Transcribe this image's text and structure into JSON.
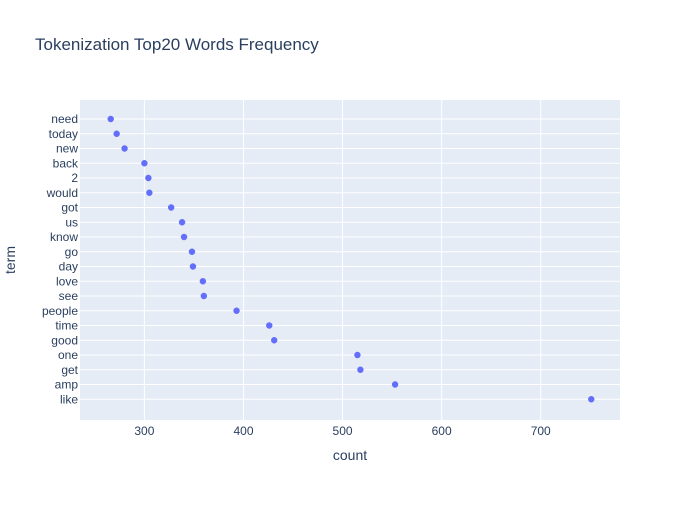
{
  "chart_data": {
    "type": "scatter",
    "title": "Tokenization Top20 Words Frequency",
    "xlabel": "count",
    "ylabel": "term",
    "xlim": [
      235,
      780
    ],
    "x_ticks": [
      300,
      400,
      500,
      600,
      700
    ],
    "grid": true,
    "marker_color": "#636efa",
    "plot_background": "#e5ecf6",
    "grid_color": "#ffffff",
    "text_color": "#2a3f5f",
    "categories": [
      "need",
      "today",
      "new",
      "back",
      "2",
      "would",
      "got",
      "us",
      "know",
      "go",
      "day",
      "love",
      "see",
      "people",
      "time",
      "good",
      "one",
      "get",
      "amp",
      "like"
    ],
    "values": [
      266,
      272,
      280,
      300,
      304,
      305,
      327,
      338,
      340,
      348,
      349,
      359,
      360,
      393,
      426,
      431,
      515,
      518,
      553,
      751
    ]
  }
}
